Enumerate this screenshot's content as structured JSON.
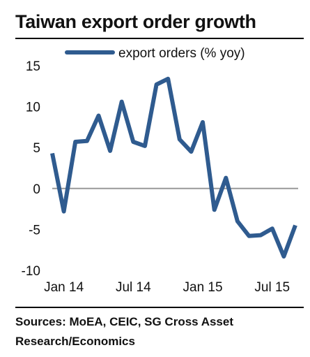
{
  "title": "Taiwan export order growth",
  "source_line1": "Sources: MoEA, CEIC, SG Cross Asset",
  "source_line2": "Research/Economics",
  "colors": {
    "line": "#2f5b8f",
    "zero_line": "#999999",
    "text": "#111111"
  },
  "chart_data": {
    "type": "line",
    "title": "Taiwan export order growth",
    "xlabel": "",
    "ylabel": "",
    "ylim": [
      -10,
      15
    ],
    "yticks": [
      15,
      10,
      5,
      0,
      -5,
      -10
    ],
    "x_tick_labels": [
      "Jan 14",
      "Jul 14",
      "Jan 15",
      "Jul 15"
    ],
    "x_tick_positions": [
      "Jan 14",
      "Jul 14",
      "Jan 15",
      "Jul 15"
    ],
    "grid": false,
    "legend": "top",
    "x": [
      "Dec 13",
      "Jan 14",
      "Feb 14",
      "Mar 14",
      "Apr 14",
      "May 14",
      "Jun 14",
      "Jul 14",
      "Aug 14",
      "Sep 14",
      "Oct 14",
      "Nov 14",
      "Dec 14",
      "Jan 15",
      "Feb 15",
      "Mar 15",
      "Apr 15",
      "May 15",
      "Jun 15",
      "Jul 15",
      "Aug 15",
      "Sep 15"
    ],
    "series": [
      {
        "name": "export orders (% yoy)",
        "values": [
          4.3,
          -2.8,
          5.7,
          5.8,
          8.9,
          4.6,
          10.6,
          5.7,
          5.2,
          12.7,
          13.4,
          6.0,
          4.5,
          8.1,
          -2.6,
          1.3,
          -4.0,
          -5.8,
          -5.7,
          -4.9,
          -8.3,
          -4.5
        ]
      }
    ]
  }
}
